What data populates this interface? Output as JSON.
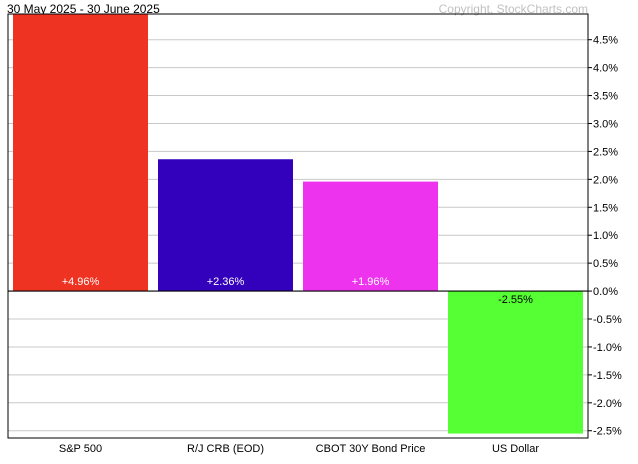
{
  "header": {
    "period": "30 May 2025 - 30 June 2025",
    "copyright": "Copyright, StockCharts.com"
  },
  "chart_data": {
    "type": "bar",
    "categories": [
      "S&P 500",
      "R/J CRB (EOD)",
      "CBOT 30Y Bond Price",
      "US Dollar"
    ],
    "values": [
      4.96,
      2.36,
      1.96,
      -2.55
    ],
    "data_labels": [
      "+4.96%",
      "+2.36%",
      "+1.96%",
      "-2.55%"
    ],
    "colors": [
      "#ee3322",
      "#3300bb",
      "#ee33ee",
      "#55ff33"
    ],
    "yticks": [
      4.5,
      4.0,
      3.5,
      3.0,
      2.5,
      2.0,
      1.5,
      1.0,
      0.5,
      0.0,
      -0.5,
      -1.0,
      -1.5,
      -2.0,
      -2.5
    ],
    "ytick_labels": [
      "4.5%",
      "4.0%",
      "3.5%",
      "3.0%",
      "2.5%",
      "2.0%",
      "1.5%",
      "1.0%",
      "0.5%",
      "0.0%",
      "-0.5%",
      "-1.0%",
      "-1.5%",
      "-2.0%",
      "-2.5%"
    ],
    "ylim": [
      -2.63,
      4.96
    ],
    "grid": true,
    "title": "",
    "xlabel": "",
    "ylabel": ""
  }
}
